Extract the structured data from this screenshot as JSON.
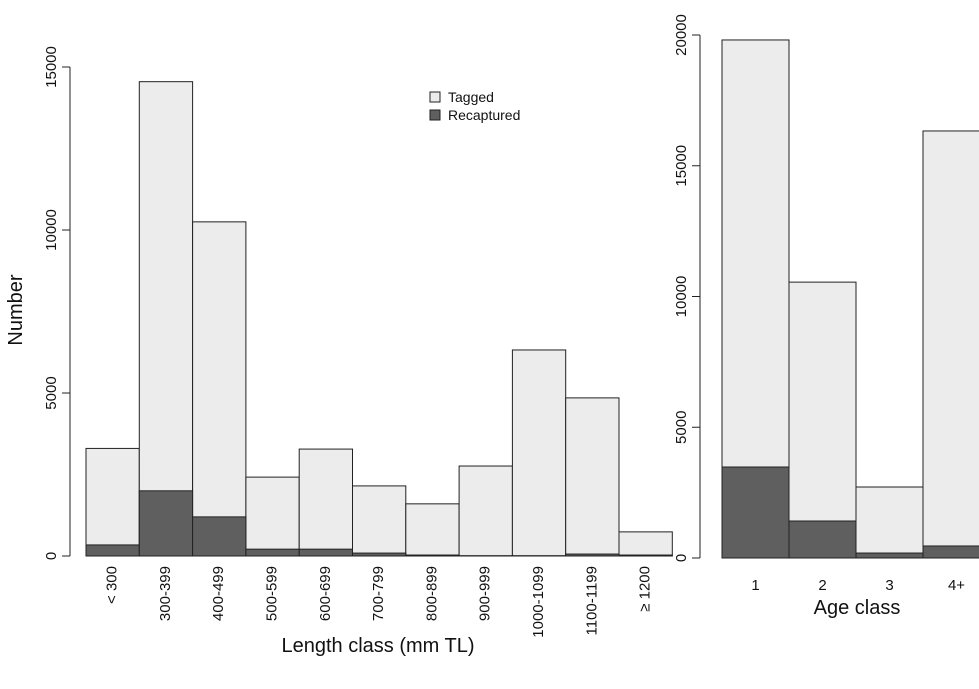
{
  "chart_data": [
    {
      "type": "bar",
      "barmode": "overlay",
      "xlabel": "Length class (mm TL)",
      "ylabel": "Number",
      "categories": [
        "< 300",
        "300-399",
        "400-499",
        "500-599",
        "600-699",
        "700-799",
        "800-899",
        "900-999",
        "1000-1099",
        "1100-1199",
        "≥ 1200"
      ],
      "series": [
        {
          "name": "Tagged",
          "color": "#ececec",
          "values": [
            3300,
            14550,
            10250,
            2420,
            3280,
            2150,
            1600,
            2760,
            6320,
            4850,
            740
          ]
        },
        {
          "name": "Recaptured",
          "color": "#5f5f5f",
          "values": [
            340,
            2000,
            1200,
            210,
            210,
            90,
            30,
            10,
            10,
            60,
            30
          ]
        }
      ],
      "ylim": [
        0,
        15000
      ],
      "yticks": [
        0,
        5000,
        10000,
        15000
      ],
      "legend": "top-right"
    },
    {
      "type": "bar",
      "barmode": "overlay",
      "xlabel": "Age class",
      "categories": [
        "1",
        "2",
        "3",
        "4+"
      ],
      "series": [
        {
          "color": "#ececec",
          "values": [
            19810,
            10550,
            2715,
            16330
          ]
        },
        {
          "color": "#5f5f5f",
          "values": [
            3480,
            1415,
            190,
            460
          ]
        }
      ],
      "ylim": [
        0,
        20000
      ],
      "yticks": [
        0,
        5000,
        10000,
        15000,
        20000
      ]
    }
  ]
}
